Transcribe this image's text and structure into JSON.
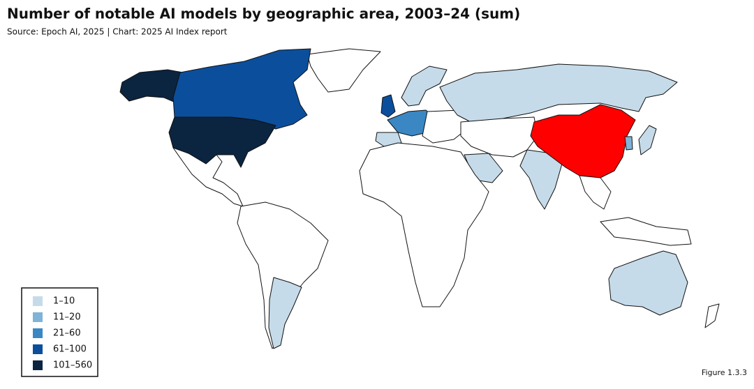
{
  "header": {
    "title": "Number of notable AI models by geographic area, 2003–24 (sum)",
    "source": "Source: Epoch AI, 2025 | Chart: 2025 AI Index report"
  },
  "legend": [
    {
      "label": "1–10",
      "color": "#c6dbe9"
    },
    {
      "label": "11–20",
      "color": "#7fb3d8"
    },
    {
      "label": "21–60",
      "color": "#3a87c4"
    },
    {
      "label": "61–100",
      "color": "#0b4f9c"
    },
    {
      "label": "101–560",
      "color": "#0b2440"
    }
  ],
  "figure": "Figure 1.3.3"
}
